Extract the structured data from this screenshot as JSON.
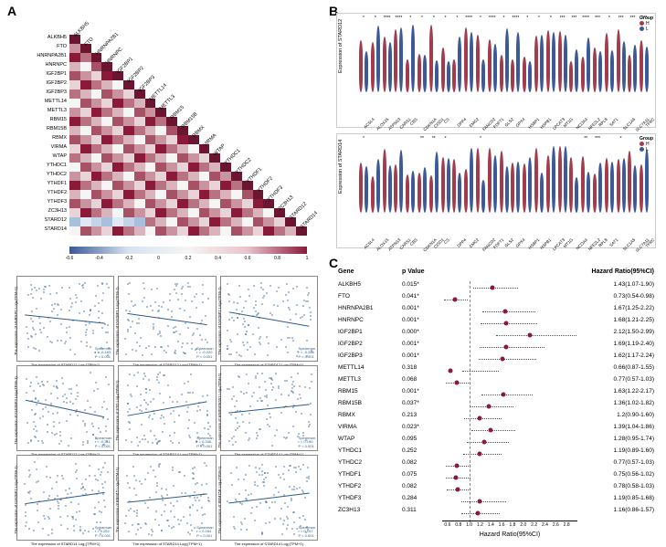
{
  "labels": {
    "A": "A",
    "B": "B",
    "C": "C"
  },
  "heatmap": {
    "genes": [
      "ALKBH5",
      "FTO",
      "HNRNPA2B1",
      "HNRNPC",
      "IGF2BP1",
      "IGF2BP2",
      "IGF2BP3",
      "METTL14",
      "METTL3",
      "RBM15",
      "RBM15B",
      "RBMX",
      "VIRMA",
      "WTAP",
      "YTHDC1",
      "YTHDC2",
      "YTHDF1",
      "YTHDF2",
      "YTHDF3",
      "ZC3H13",
      "STARD12",
      "STARD14"
    ],
    "colorbar_ticks": [
      "-0.6",
      "-0.4",
      "-0.2",
      "0",
      "0.2",
      "0.4",
      "0.6",
      "0.8",
      "1"
    ],
    "cell_size": {
      "w": 11.8,
      "h": 10
    },
    "diag_color": "#6b1530",
    "colors": [
      "#f5f5f5",
      "#e8d4d8",
      "#d9b4bc",
      "#c9939f",
      "#b87282",
      "#a65165",
      "#8b1a3a",
      "#e0e8f2",
      "#c4d4e8",
      "#a8bfde"
    ]
  },
  "scatters": [
    {
      "yl": "The expression of HNRNPC\nLog₂(TPM+1)",
      "xl": "The expression of STARD12\nLog₂(TPM+1)",
      "r": "-0.183",
      "p": "< 0.001",
      "slope": -6
    },
    {
      "yl": "The expression of IGF2BP1\nLog₂(TPM+1)",
      "xl": "The expression of STARD12\nLog₂(TPM+1)",
      "r": "-0.220",
      "p": "< 0.001",
      "slope": -8
    },
    {
      "yl": "The expression of IGF2BP2\nLog₂(TPM+1)",
      "xl": "The expression of STARD12\nLog₂(TPM+1)",
      "r": "-0.286",
      "p": "< 0.001",
      "slope": -10
    },
    {
      "yl": "The expression of IGF2BP3\nLog₂(TPM+1)",
      "xl": "The expression of STARD12\nLog₂(TPM+1)",
      "r": "-0.311",
      "p": "< 0.001",
      "slope": -12
    },
    {
      "yl": "The expression of FTO\nLog₂(TPM+1)",
      "xl": "The expression of STARD14\nLog₂(TPM+1)",
      "r": "0.346",
      "p": "< 0.001",
      "slope": 10
    },
    {
      "yl": "The expression of HNRNPA2B1\nLog₂(TPM+1)",
      "xl": "The expression of STARD14\nLog₂(TPM+1)",
      "r": "0.190",
      "p": "< 0.001",
      "slope": 6
    },
    {
      "yl": "The expression of IGF2BP2\nLog₂(TPM+1)",
      "xl": "The expression of STARD14\nLog₂(TPM+1)",
      "r": "0.252",
      "p": "< 0.001",
      "slope": 8
    },
    {
      "yl": "The expression of RBM15\nLog₂(TPM+1)",
      "xl": "The expression of STARD14\nLog₂(TPM+1)",
      "r": "0.184",
      "p": "< 0.001",
      "slope": 6
    },
    {
      "yl": "The expression of RBM15B\nLog₂(TPM+1)",
      "xl": "The expression of STARD14\nLog₂(TPM+1)",
      "r": "0.197",
      "p": "< 0.001",
      "slope": 7
    }
  ],
  "violin": {
    "legend": {
      "title": "Group",
      "H": "H",
      "L": "L"
    },
    "H_color": "#a33b4e",
    "L_color": "#3b5998",
    "xgenes": [
      "ACSL4",
      "ALOX15",
      "ATP5G3",
      "CARS1",
      "CBS",
      "CDKN1A",
      "CISD1",
      "CS",
      "DPP4",
      "EMC2",
      "FANCD2",
      "FDFT1",
      "GLS2",
      "GPX4",
      "HSBP1",
      "HSPB1",
      "LPCAT3",
      "MT1G",
      "NCOA4",
      "NFE2L2",
      "RPL8",
      "SAT1",
      "SLC1A5",
      "SLC7A11",
      "TFRC"
    ],
    "panels": [
      {
        "ylabel": "Expression of STARD12",
        "sigs": [
          "*",
          "*",
          "****",
          "****",
          "*",
          "*",
          "*",
          "*",
          "*",
          "****",
          "*",
          "****",
          "*",
          "****",
          "*",
          "*",
          "*",
          "***",
          "***",
          "****",
          "***",
          "*",
          "***",
          "***",
          "***"
        ]
      },
      {
        "ylabel": "Expression of STARD14",
        "sigs": [
          "*",
          "",
          "",
          "",
          "",
          "**",
          "**",
          "*",
          "",
          "",
          "*",
          "",
          "",
          "",
          "",
          "",
          "",
          "",
          "",
          "**",
          "***",
          "",
          "*",
          "",
          ""
        ]
      }
    ]
  },
  "forest": {
    "headers": {
      "gene": "Gene",
      "p": "p Value",
      "hr": "Hazard Ratio(95%CI)"
    },
    "xlabel": "Hazard Ratio(95%CI)",
    "xticks": [
      "0.6",
      "0.8",
      "1.0",
      "1.2",
      "1.4",
      "1.6",
      "1.8",
      "2.0",
      "2.2",
      "2.4",
      "2.6",
      "2.8"
    ],
    "xmin": 0.5,
    "xmax": 3.0,
    "ref": 1.0,
    "dot_color": "#8b1a3a",
    "rows": [
      {
        "gene": "ALKBH5",
        "p": "0.015*",
        "hr": 1.43,
        "lo": 1.07,
        "hi": 1.9,
        "txt": "1.43(1.07-1.90)"
      },
      {
        "gene": "FTO",
        "p": "0.041*",
        "hr": 0.73,
        "lo": 0.54,
        "hi": 0.98,
        "txt": "0.73(0.54-0.98)"
      },
      {
        "gene": "HNRNPA2B1",
        "p": "0.001*",
        "hr": 1.67,
        "lo": 1.25,
        "hi": 2.22,
        "txt": "1.67(1.25-2.22)"
      },
      {
        "gene": "HNRNPC",
        "p": "0.001*",
        "hr": 1.68,
        "lo": 1.21,
        "hi": 2.25,
        "txt": "1.68(1.21-2.25)"
      },
      {
        "gene": "IGF2BP1",
        "p": "0.000*",
        "hr": 2.12,
        "lo": 1.5,
        "hi": 2.99,
        "txt": "2.12(1.50-2.99)"
      },
      {
        "gene": "IGF2BP2",
        "p": "0.001*",
        "hr": 1.69,
        "lo": 1.19,
        "hi": 2.4,
        "txt": "1.69(1.19-2.40)"
      },
      {
        "gene": "IGF2BP3",
        "p": "0.001*",
        "hr": 1.62,
        "lo": 1.17,
        "hi": 2.24,
        "txt": "1.62(1.17-2.24)"
      },
      {
        "gene": "METTL14",
        "p": "0.318",
        "hr": 0.66,
        "lo": 0.87,
        "hi": 1.55,
        "txt": "0.66(0.87-1.55)"
      },
      {
        "gene": "METTL3",
        "p": "0.068",
        "hr": 0.77,
        "lo": 0.57,
        "hi": 1.03,
        "txt": "0.77(0.57-1.03)"
      },
      {
        "gene": "RBM15",
        "p": "0.001*",
        "hr": 1.63,
        "lo": 1.22,
        "hi": 2.17,
        "txt": "1.63(1.22-2.17)"
      },
      {
        "gene": "RBM15B",
        "p": "0.037*",
        "hr": 1.36,
        "lo": 1.02,
        "hi": 1.82,
        "txt": "1.36(1.02-1.82)"
      },
      {
        "gene": "RBMX",
        "p": "0.213",
        "hr": 1.2,
        "lo": 0.9,
        "hi": 1.6,
        "txt": "1.2(0.90-1.60)"
      },
      {
        "gene": "VIRMA",
        "p": "0.023*",
        "hr": 1.39,
        "lo": 1.04,
        "hi": 1.86,
        "txt": "1.39(1.04-1.86)"
      },
      {
        "gene": "WTAP",
        "p": "0.095",
        "hr": 1.28,
        "lo": 0.95,
        "hi": 1.74,
        "txt": "1.28(0.95-1.74)"
      },
      {
        "gene": "YTHDC1",
        "p": "0.252",
        "hr": 1.19,
        "lo": 0.89,
        "hi": 1.6,
        "txt": "1.19(0.89-1.60)"
      },
      {
        "gene": "YTHDC2",
        "p": "0.082",
        "hr": 0.77,
        "lo": 0.57,
        "hi": 1.03,
        "txt": "0.77(0.57-1.03)"
      },
      {
        "gene": "YTHDF1",
        "p": "0.075",
        "hr": 0.75,
        "lo": 0.56,
        "hi": 1.02,
        "txt": "0.75(0.56-1.02)"
      },
      {
        "gene": "YTHDF2",
        "p": "0.082",
        "hr": 0.78,
        "lo": 0.58,
        "hi": 1.03,
        "txt": "0.78(0.58-1.03)"
      },
      {
        "gene": "YTHDF3",
        "p": "0.284",
        "hr": 1.19,
        "lo": 0.85,
        "hi": 1.68,
        "txt": "1.19(0.85-1.68)"
      },
      {
        "gene": "ZC3H13",
        "p": "0.311",
        "hr": 1.16,
        "lo": 0.86,
        "hi": 1.57,
        "txt": "1.16(0.86-1.57)"
      }
    ]
  }
}
